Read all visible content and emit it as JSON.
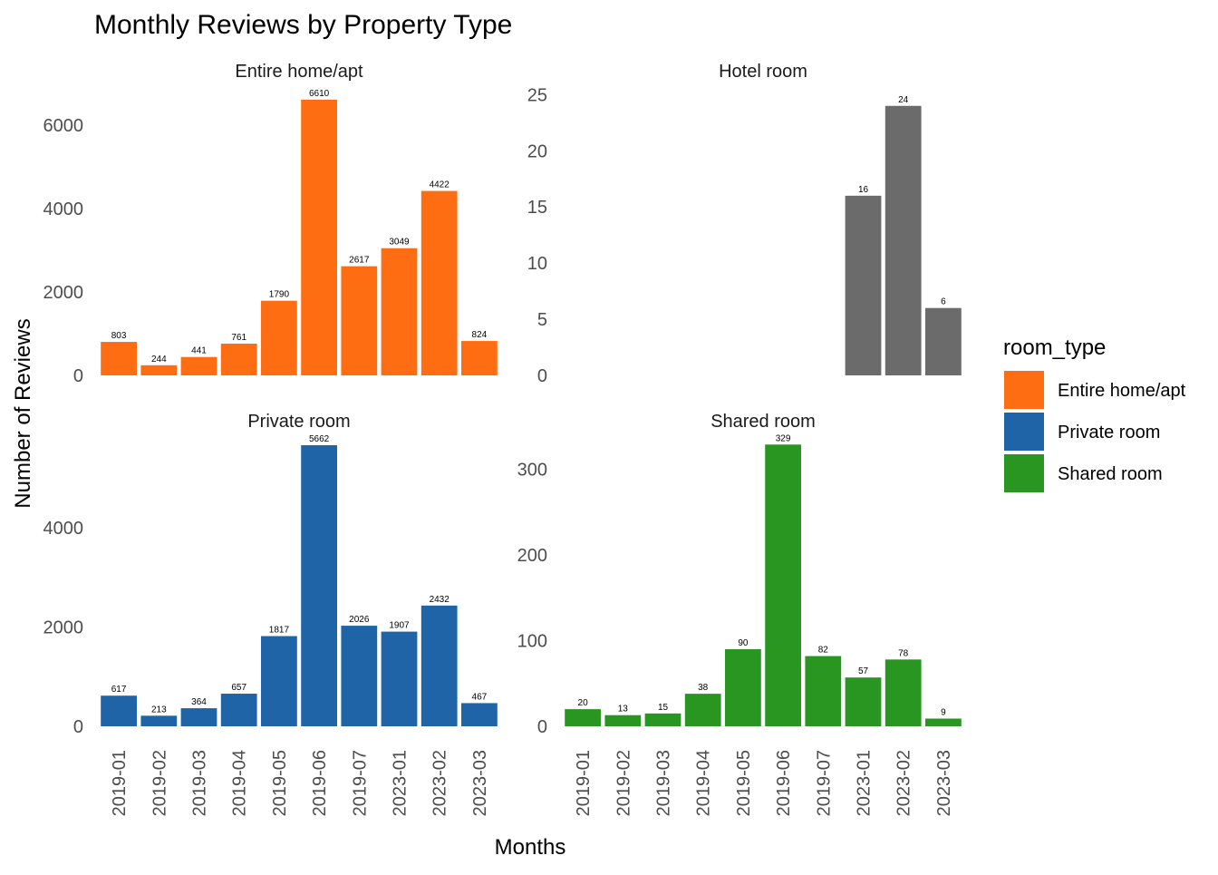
{
  "chart_data": {
    "type": "bar",
    "title": "Monthly Reviews by Property Type",
    "xlabel": "Months",
    "ylabel": "Number of Reviews",
    "legend": {
      "title": "room_type",
      "position": "right",
      "entries": [
        {
          "label": "Entire home/apt",
          "color": "#ff6d12"
        },
        {
          "label": "Private room",
          "color": "#1f64a7"
        },
        {
          "label": "Shared room",
          "color": "#299622"
        }
      ]
    },
    "categories": [
      "2019-01",
      "2019-02",
      "2019-03",
      "2019-04",
      "2019-05",
      "2019-06",
      "2019-07",
      "2023-01",
      "2023-02",
      "2023-03"
    ],
    "grid": false,
    "panels": [
      {
        "name": "Entire home/apt",
        "color": "#ff6d12",
        "values": [
          803,
          244,
          441,
          761,
          1790,
          6610,
          2617,
          3049,
          4422,
          824
        ],
        "ylim": [
          0,
          7000
        ],
        "yticks": [
          0,
          2000,
          4000,
          6000
        ]
      },
      {
        "name": "Hotel room",
        "color": "#6b6b6b",
        "values": [
          null,
          null,
          null,
          null,
          null,
          null,
          null,
          16,
          24,
          6
        ],
        "ylim": [
          0,
          26
        ],
        "yticks": [
          0,
          5,
          10,
          15,
          20,
          25
        ]
      },
      {
        "name": "Private room",
        "color": "#1f64a7",
        "values": [
          617,
          213,
          364,
          657,
          1817,
          5662,
          2026,
          1907,
          2432,
          467
        ],
        "ylim": [
          0,
          5900
        ],
        "yticks": [
          0,
          2000,
          4000
        ]
      },
      {
        "name": "Shared room",
        "color": "#299622",
        "values": [
          20,
          13,
          15,
          38,
          90,
          329,
          82,
          57,
          78,
          9
        ],
        "ylim": [
          0,
          342
        ],
        "yticks": [
          0,
          100,
          200,
          300
        ]
      }
    ]
  }
}
